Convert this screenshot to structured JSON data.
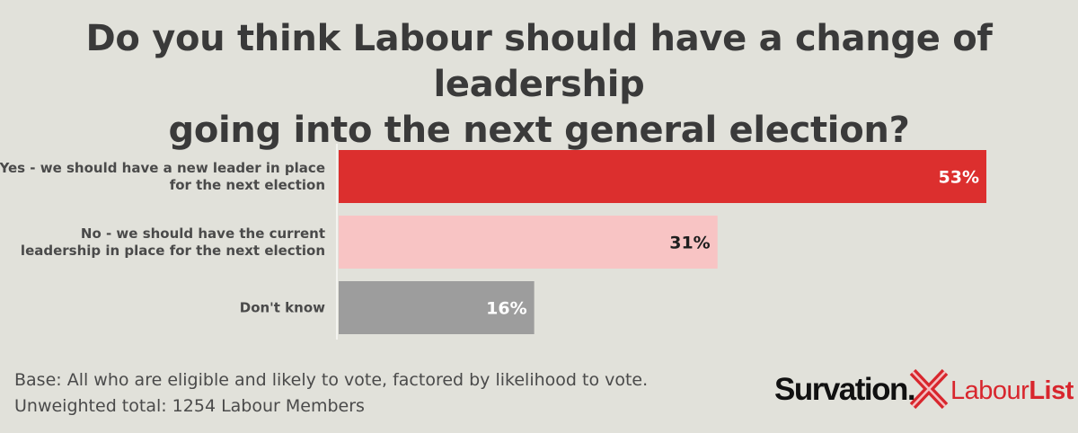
{
  "title": {
    "line1": "Do you think Labour should have a change of leadership",
    "line2": "going into the next general election?"
  },
  "chart_data": {
    "type": "bar",
    "orientation": "horizontal",
    "title": "Do you think Labour should have a change of leadership going into the next general election?",
    "categories": [
      [
        "Yes - we should have a new leader in place",
        "for the next election"
      ],
      [
        "No - we should have the current",
        "leadership in place for the next election"
      ],
      [
        "Don't know"
      ]
    ],
    "values": [
      53,
      31,
      16
    ],
    "value_labels": [
      "53%",
      "31%",
      "16%"
    ],
    "unit": "%",
    "xlim": [
      0,
      60
    ],
    "bar_colors": [
      "#dc2f2e",
      "#f8c4c4",
      "#9d9d9d"
    ],
    "label_colors": [
      "#ffffff",
      "#1e1e1e",
      "#ffffff"
    ]
  },
  "footer": {
    "line1": "Base: All who are eligible and likely to vote, factored by likelihood to vote.",
    "line2": "Unweighted total: 1254 Labour Members"
  },
  "logos": {
    "survation": "Survation.",
    "labourlist_part1": "Labour",
    "labourlist_part2": "List",
    "icon": "x-cross-icon",
    "brand_red": "#d8262d"
  }
}
